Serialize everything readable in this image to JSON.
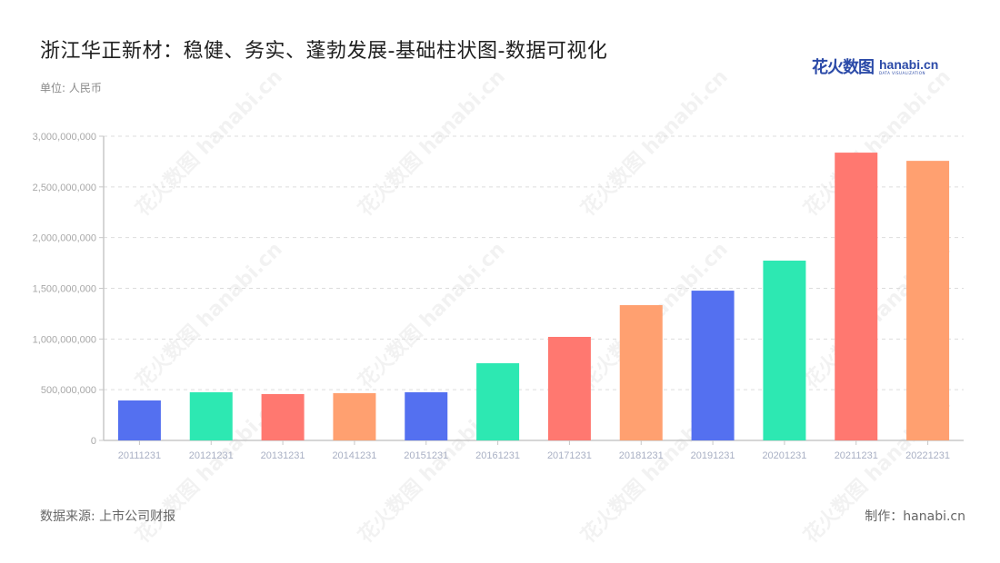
{
  "header": {
    "title": "浙江华正新材：稳健、务实、蓬勃发展-基础柱状图-数据可视化",
    "unit": "单位: 人民币"
  },
  "logo": {
    "cn": "花火数图",
    "en": "hanabi.cn",
    "en_sub": "DATA VISUALIZATION"
  },
  "footer": {
    "source": "数据来源: 上市公司财报",
    "credit": "制作：hanabi.cn"
  },
  "watermark_text": "花火数图 hanabi.cn",
  "colors": {
    "palette": [
      "#5470f0",
      "#2de8b2",
      "#ff7870",
      "#ffa070"
    ],
    "axis": "#c8c8c8",
    "grid": "#dddddd",
    "tick_label": "#a8a8a8",
    "x_label": "#a9b0c4"
  },
  "chart_data": {
    "type": "bar",
    "title": "浙江华正新材：稳健、务实、蓬勃发展-基础柱状图-数据可视化",
    "xlabel": "",
    "ylabel": "单位: 人民币",
    "ylim": [
      0,
      3000000000
    ],
    "yticks": [
      0,
      500000000,
      1000000000,
      1500000000,
      2000000000,
      2500000000,
      3000000000
    ],
    "ytick_labels": [
      "0",
      "500,000,000",
      "1,000,000,000",
      "1,500,000,000",
      "2,000,000,000",
      "2,500,000,000",
      "3,000,000,000"
    ],
    "grid": true,
    "legend": null,
    "categories": [
      "20111231",
      "20121231",
      "20131231",
      "20141231",
      "20151231",
      "20161231",
      "20171231",
      "20181231",
      "20191231",
      "20201231",
      "20211231",
      "20221231"
    ],
    "values": [
      394000000,
      475000000,
      457000000,
      466000000,
      475000000,
      761000000,
      1021000000,
      1334000000,
      1477000000,
      1773000000,
      2838000000,
      2757000000
    ],
    "bar_colors": [
      "#5470f0",
      "#2de8b2",
      "#ff7870",
      "#ffa070",
      "#5470f0",
      "#2de8b2",
      "#ff7870",
      "#ffa070",
      "#5470f0",
      "#2de8b2",
      "#ff7870",
      "#ffa070"
    ]
  }
}
